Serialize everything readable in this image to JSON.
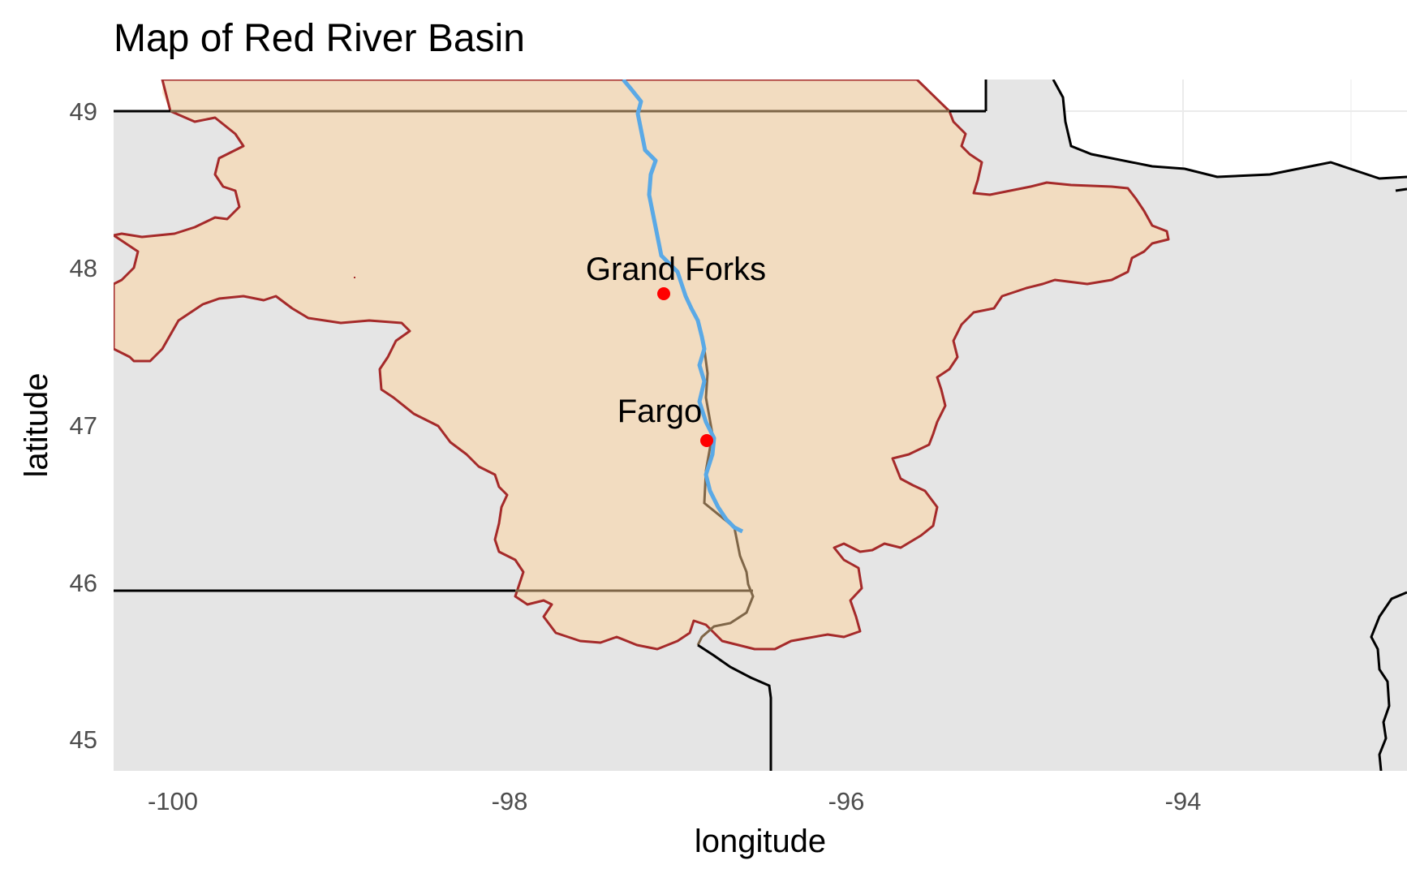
{
  "map": {
    "title": "Map of Red River Basin",
    "xlabel": "longitude",
    "ylabel": "latitude",
    "x_ticks": [
      "-100",
      "-98",
      "-96",
      "-94"
    ],
    "y_ticks": [
      "49",
      "48",
      "47",
      "46",
      "45"
    ],
    "cities": [
      {
        "name": "Grand Forks",
        "lon": -97.1,
        "lat": 47.85
      },
      {
        "name": "Fargo",
        "lon": -96.85,
        "lat": 46.92
      }
    ],
    "colors": {
      "land": "#e5e5e5",
      "basin_fill": "#f2dcc0",
      "canada_fill": "#fbe8ce",
      "basin_outline": "#a52a2a",
      "river": "#5aa9e6",
      "state_borders": "#000000",
      "city_marker": "#ff0000",
      "grid": "#ebebeb"
    }
  }
}
